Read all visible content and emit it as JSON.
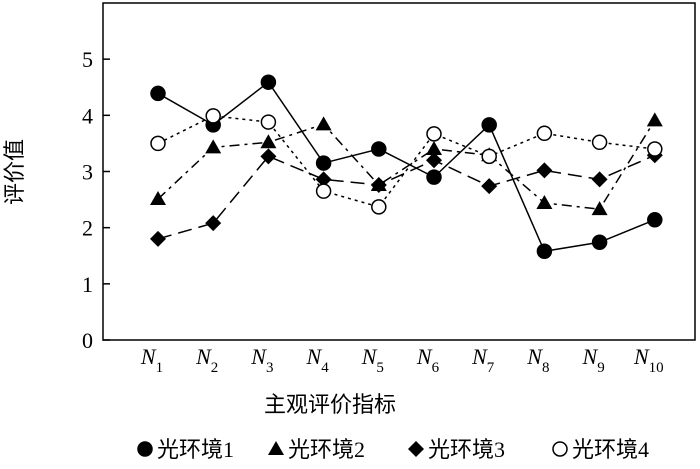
{
  "chart_data": {
    "type": "line",
    "x_label": "主观评价指标",
    "y_label": "评价值",
    "categories": [
      {
        "main": "N",
        "sub": "1"
      },
      {
        "main": "N",
        "sub": "2"
      },
      {
        "main": "N",
        "sub": "3"
      },
      {
        "main": "N",
        "sub": "4"
      },
      {
        "main": "N",
        "sub": "5"
      },
      {
        "main": "N",
        "sub": "6"
      },
      {
        "main": "N",
        "sub": "7"
      },
      {
        "main": "N",
        "sub": "8"
      },
      {
        "main": "N",
        "sub": "9"
      },
      {
        "main": "N",
        "sub": "10"
      }
    ],
    "ylim": [
      0,
      6
    ],
    "yticks": [
      0,
      1,
      2,
      3,
      4,
      5
    ],
    "legend": "bottom",
    "series": [
      {
        "name": "光环境1",
        "color": "#000000",
        "marker": "circle",
        "dash": "solid",
        "values": [
          4.39,
          3.83,
          4.59,
          3.15,
          3.4,
          2.9,
          3.83,
          1.58,
          1.74,
          2.14
        ]
      },
      {
        "name": "光环境2",
        "color": "#000000",
        "marker": "triangle",
        "dash": "dashdot",
        "values": [
          2.51,
          3.43,
          3.52,
          3.84,
          2.76,
          3.4,
          3.29,
          2.44,
          2.33,
          3.91
        ]
      },
      {
        "name": "光环境3",
        "color": "#000000",
        "marker": "diamond",
        "dash": "longdash",
        "values": [
          1.8,
          2.08,
          3.27,
          2.86,
          2.76,
          3.2,
          2.74,
          3.02,
          2.86,
          3.29
        ]
      },
      {
        "name": "光环境4",
        "color": "#000000",
        "marker": "open-circle",
        "dash": "dotted",
        "values": [
          3.5,
          3.99,
          3.88,
          2.65,
          2.37,
          3.67,
          3.27,
          3.68,
          3.52,
          3.4
        ]
      }
    ]
  }
}
